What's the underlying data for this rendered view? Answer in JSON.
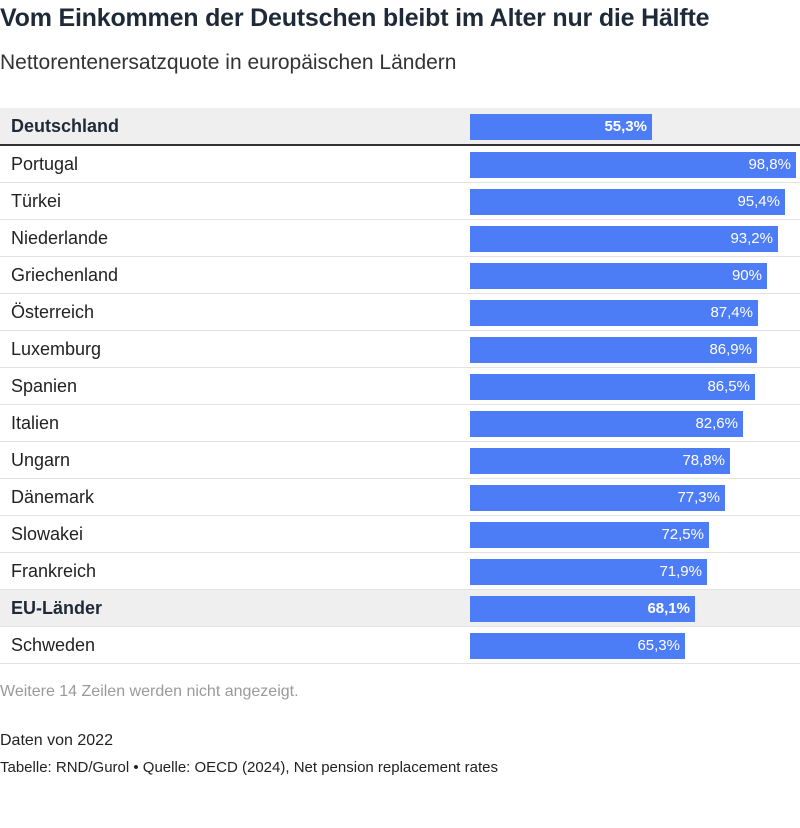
{
  "chart_data": {
    "type": "bar",
    "title": "Vom Einkommen der Deutschen bleibt im Alter nur die Hälfte",
    "subtitle": "Nettorentenersatzquote in europäischen Ländern",
    "categories": [
      "Deutschland",
      "Portugal",
      "Türkei",
      "Niederlande",
      "Griechenland",
      "Österreich",
      "Luxemburg",
      "Spanien",
      "Italien",
      "Ungarn",
      "Dänemark",
      "Slowakei",
      "Frankreich",
      "EU-Länder",
      "Schweden"
    ],
    "values": [
      55.3,
      98.8,
      95.4,
      93.2,
      90,
      87.4,
      86.9,
      86.5,
      82.6,
      78.8,
      77.3,
      72.5,
      71.9,
      68.1,
      65.3
    ],
    "value_labels": [
      "55,3%",
      "98,8%",
      "95,4%",
      "93,2%",
      "90%",
      "87,4%",
      "86,9%",
      "86,5%",
      "82,6%",
      "78,8%",
      "77,3%",
      "72,5%",
      "71,9%",
      "68,1%",
      "65,3%"
    ],
    "highlighted": [
      "Deutschland",
      "EU-Länder"
    ],
    "unit": "%",
    "xlim": [
      0,
      100
    ],
    "bar_color": "#4d7cf7",
    "grid": false,
    "legend": "none"
  },
  "notes": {
    "hidden_rows": "Weitere 14 Zeilen werden nicht angezeigt.",
    "date": "Daten von 2022",
    "source": "Tabelle: RND/Gurol • Quelle: OECD (2024), Net pension replacement rates"
  }
}
